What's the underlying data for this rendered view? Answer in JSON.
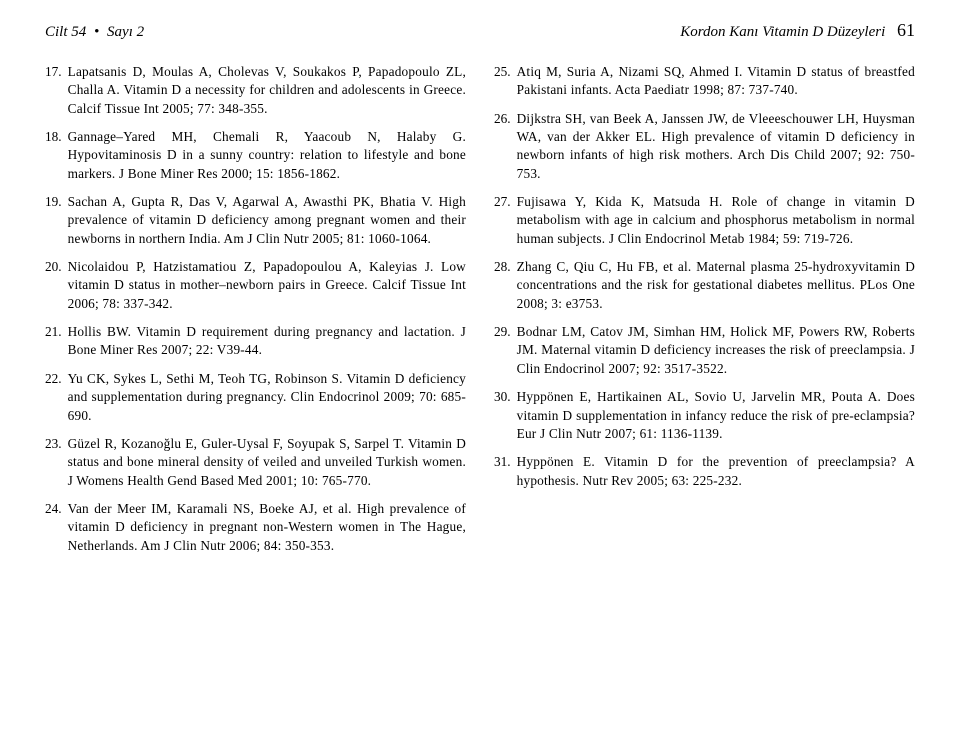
{
  "header": {
    "left_vol": "Cilt 54",
    "left_issue": "Sayı 2",
    "right_title": "Kordon Kanı Vitamin D Düzeyleri",
    "page_num": "61"
  },
  "left_refs": [
    {
      "n": "17.",
      "t": "Lapatsanis D, Moulas A, Cholevas V, Soukakos P, Papadopoulo ZL, Challa A. Vitamin D a necessity for children and adolescents in Greece. Calcif Tissue Int 2005; 77: 348-355."
    },
    {
      "n": "18.",
      "t": "Gannage–Yared MH, Chemali R, Yaacoub N, Halaby G. Hypovitaminosis D in a sunny country: relation to lifestyle and bone markers. J Bone Miner Res 2000; 15: 1856-1862."
    },
    {
      "n": "19.",
      "t": "Sachan A, Gupta R, Das V, Agarwal A, Awasthi PK, Bhatia V. High prevalence of vitamin D deficiency among pregnant women and their newborns in northern India. Am J Clin Nutr 2005; 81: 1060-1064."
    },
    {
      "n": "20.",
      "t": "Nicolaidou P, Hatzistamatiou Z, Papadopoulou A, Kaleyias J. Low vitamin D status in mother–newborn pairs in Greece. Calcif Tissue Int 2006; 78: 337-342."
    },
    {
      "n": "21.",
      "t": "Hollis BW. Vitamin D requirement during pregnancy and lactation. J Bone Miner Res 2007; 22: V39-44."
    },
    {
      "n": "22.",
      "t": "Yu CK, Sykes L, Sethi M, Teoh TG, Robinson S. Vitamin D deficiency and supplementation during pregnancy. Clin Endocrinol 2009; 70: 685-690."
    },
    {
      "n": "23.",
      "t": "Güzel R, Kozanoğlu E, Guler-Uysal F, Soyupak S, Sarpel T. Vitamin D status and bone mineral density of veiled and unveiled Turkish women. J Womens Health Gend Based Med 2001; 10: 765-770."
    },
    {
      "n": "24.",
      "t": "Van der Meer IM, Karamali NS, Boeke AJ, et al. High prevalence of vitamin D deficiency in pregnant non-Western women in The Hague, Netherlands. Am J Clin Nutr 2006; 84: 350-353."
    }
  ],
  "right_refs": [
    {
      "n": "25.",
      "t": "Atiq M, Suria A, Nizami SQ, Ahmed I. Vitamin D status of breastfed Pakistani infants. Acta Paediatr 1998; 87: 737-740."
    },
    {
      "n": "26.",
      "t": "Dijkstra SH, van Beek A, Janssen JW, de Vleeeschouwer LH, Huysman WA, van der Akker EL. High prevalence of vitamin D deficiency in newborn infants of high risk mothers. Arch Dis Child 2007; 92: 750-753."
    },
    {
      "n": "27.",
      "t": "Fujisawa Y, Kida K, Matsuda H. Role of change in vitamin D metabolism with age in calcium and phosphorus metabolism in normal human subjects. J Clin Endocrinol Metab 1984; 59: 719-726."
    },
    {
      "n": "28.",
      "t": "Zhang C, Qiu C, Hu FB, et al. Maternal plasma 25-hydroxyvitamin D concentrations and the risk for gestational diabetes mellitus. PLos One 2008; 3: e3753."
    },
    {
      "n": "29.",
      "t": "Bodnar LM, Catov JM, Simhan HM, Holick MF, Powers RW, Roberts JM. Maternal vitamin D deficiency increases the risk of preeclampsia. J Clin Endocrinol 2007; 92: 3517-3522."
    },
    {
      "n": "30.",
      "t": "Hyppönen E, Hartikainen AL, Sovio U, Jarvelin MR, Pouta A. Does vitamin D supplementation in infancy reduce the risk of pre-eclampsia? Eur J Clin Nutr 2007; 61: 1136-1139."
    },
    {
      "n": "31.",
      "t": "Hyppönen E. Vitamin D for the prevention of preeclampsia? A hypothesis. Nutr Rev 2005; 63: 225-232."
    }
  ]
}
